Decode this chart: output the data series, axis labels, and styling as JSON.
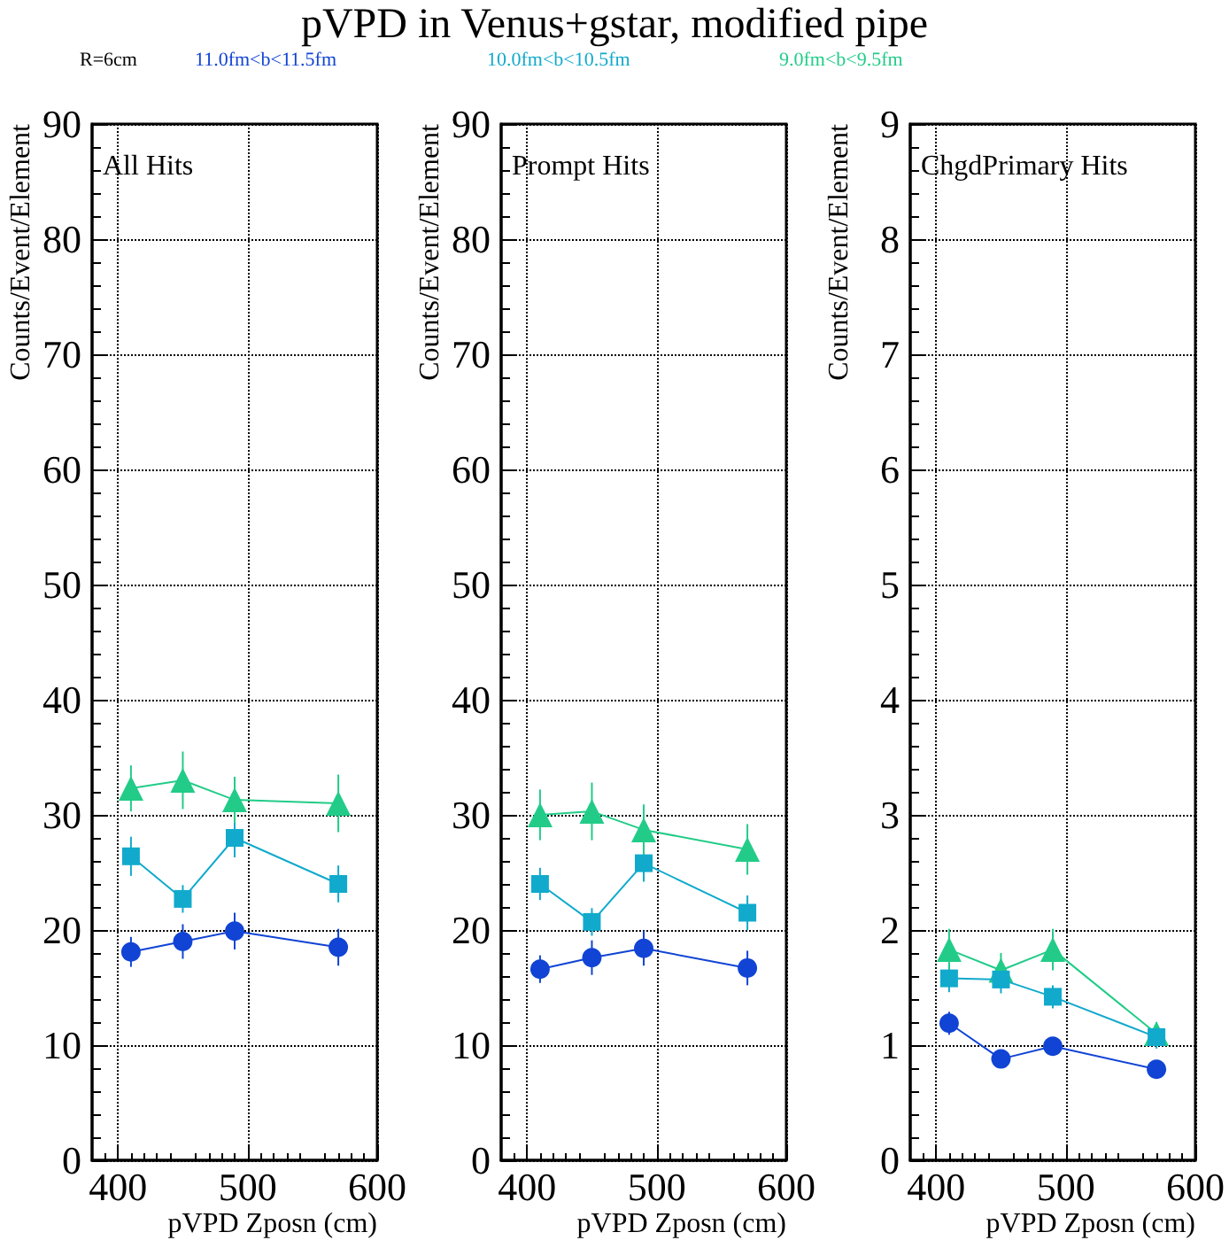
{
  "chart_data": [
    {
      "type": "line",
      "title": "pVPD in Venus+gstar, modified pipe",
      "subtitle": "All Hits",
      "xlabel": "pVPD Zposn (cm)",
      "ylabel": "Counts/Event/Element",
      "annotations": [
        "R=6cm"
      ],
      "legend": "top",
      "grid": true,
      "x": [
        410,
        450,
        490,
        570
      ],
      "xlim": [
        380,
        600
      ],
      "xticks": [
        400,
        500,
        600
      ],
      "ylim": [
        0,
        90
      ],
      "yticks": [
        0,
        10,
        20,
        30,
        40,
        50,
        60,
        70,
        80,
        90
      ],
      "series": [
        {
          "name": "11.0fm<b<11.5fm",
          "color": "#1144d4",
          "marker": "circle",
          "values": [
            18.1,
            19.0,
            19.9,
            18.5
          ],
          "errors": [
            1.3,
            1.5,
            1.6,
            1.6
          ]
        },
        {
          "name": "10.0fm<b<10.5fm",
          "color": "#11aacc",
          "marker": "square",
          "values": [
            26.4,
            22.7,
            28.0,
            24.0
          ],
          "errors": [
            1.7,
            1.2,
            1.7,
            1.6
          ]
        },
        {
          "name": "9.0fm<b<9.5fm",
          "color": "#22cc88",
          "marker": "triangle",
          "values": [
            32.3,
            33.0,
            31.3,
            31.0
          ],
          "errors": [
            2.0,
            2.5,
            2.0,
            2.5
          ]
        }
      ]
    },
    {
      "type": "line",
      "subtitle": "Prompt Hits",
      "xlabel": "pVPD Zposn (cm)",
      "ylabel": "Counts/Event/Element",
      "grid": true,
      "x": [
        410,
        450,
        490,
        570
      ],
      "xlim": [
        380,
        600
      ],
      "xticks": [
        400,
        500,
        600
      ],
      "ylim": [
        0,
        90
      ],
      "yticks": [
        0,
        10,
        20,
        30,
        40,
        50,
        60,
        70,
        80,
        90
      ],
      "series": [
        {
          "color": "#1144d4",
          "marker": "circle",
          "values": [
            16.6,
            17.6,
            18.4,
            16.7
          ],
          "errors": [
            1.2,
            1.5,
            1.5,
            1.5
          ]
        },
        {
          "color": "#11aacc",
          "marker": "square",
          "values": [
            24.0,
            20.7,
            25.8,
            21.5
          ],
          "errors": [
            1.4,
            1.2,
            1.6,
            1.5
          ]
        },
        {
          "color": "#22cc88",
          "marker": "triangle",
          "values": [
            30.0,
            30.3,
            28.7,
            27.0
          ],
          "errors": [
            2.2,
            2.5,
            2.2,
            2.2
          ]
        }
      ]
    },
    {
      "type": "line",
      "subtitle": "ChgdPrimary Hits",
      "xlabel": "pVPD Zposn (cm)",
      "ylabel": "Counts/Event/Element",
      "grid": true,
      "x": [
        410,
        450,
        490,
        570
      ],
      "xlim": [
        380,
        600
      ],
      "xticks": [
        400,
        500,
        600
      ],
      "ylim": [
        0,
        9
      ],
      "yticks": [
        0,
        1,
        2,
        3,
        4,
        5,
        6,
        7,
        8,
        9
      ],
      "series": [
        {
          "color": "#1144d4",
          "marker": "circle",
          "values": [
            1.19,
            0.88,
            0.99,
            0.79
          ],
          "errors": [
            0.1,
            0.08,
            0.08,
            0.06
          ]
        },
        {
          "color": "#11aacc",
          "marker": "square",
          "values": [
            1.58,
            1.57,
            1.42,
            1.07
          ],
          "errors": [
            0.12,
            0.12,
            0.1,
            0.1
          ]
        },
        {
          "color": "#22cc88",
          "marker": "triangle",
          "values": [
            1.83,
            1.65,
            1.83,
            1.1
          ],
          "errors": [
            0.18,
            0.15,
            0.18,
            0.1
          ]
        }
      ]
    }
  ]
}
